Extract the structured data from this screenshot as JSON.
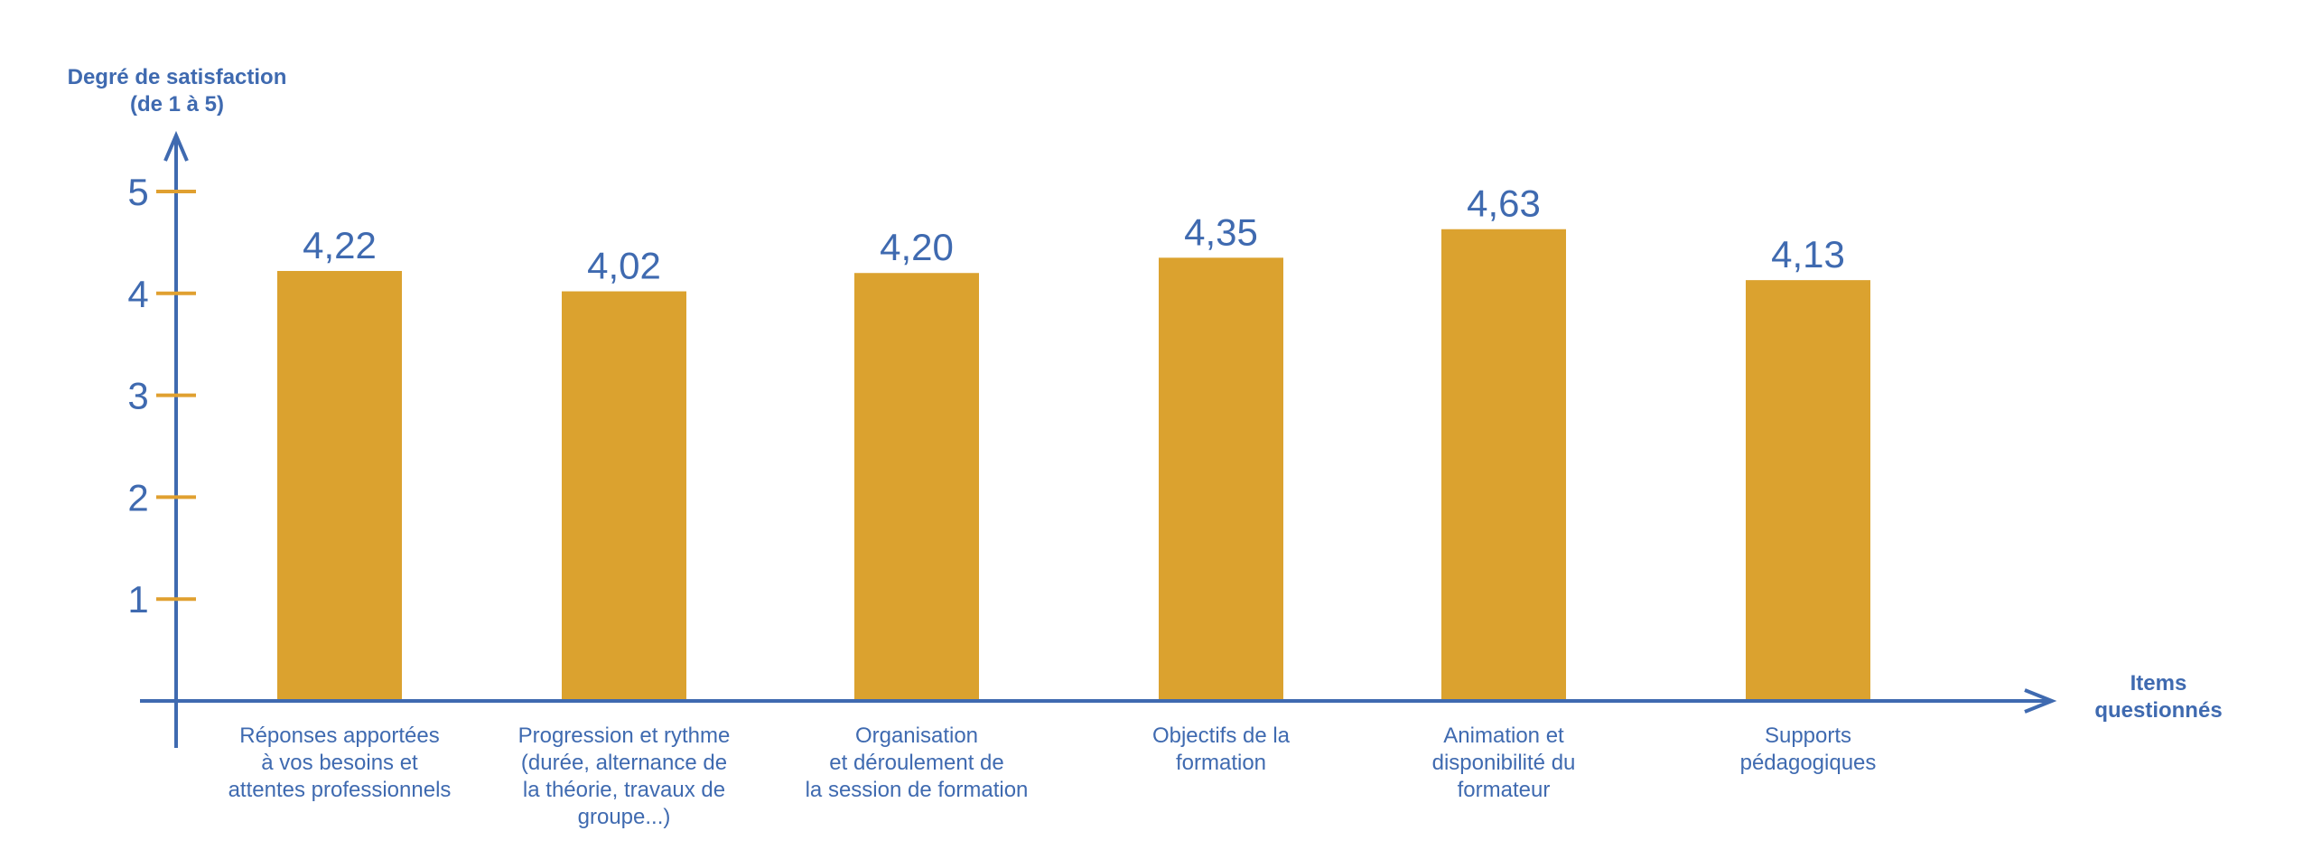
{
  "chart_data": {
    "type": "bar",
    "ylabel_lines": [
      "Degré de satisfaction",
      "(de 1 à 5)"
    ],
    "xlabel_lines": [
      "Items",
      "questionnés"
    ],
    "y_ticks": [
      1,
      2,
      3,
      4,
      5
    ],
    "ylim": [
      0,
      5
    ],
    "bar_color": "#DBA22F",
    "axis_color": "#3F6AB0",
    "tick_color": "#E0A030",
    "categories": [
      {
        "lines": [
          "Réponses apportées",
          "à vos besoins et",
          "attentes professionnels"
        ],
        "value": 4.22,
        "label": "4,22"
      },
      {
        "lines": [
          "Progression et rythme",
          "(durée, alternance de",
          "la théorie, travaux de",
          "groupe...)"
        ],
        "value": 4.02,
        "label": "4,02"
      },
      {
        "lines": [
          "Organisation",
          "et déroulement de",
          "la session de formation"
        ],
        "value": 4.2,
        "label": "4,20"
      },
      {
        "lines": [
          "Objectifs de la",
          "formation"
        ],
        "value": 4.35,
        "label": "4,35"
      },
      {
        "lines": [
          "Animation et",
          "disponibilité du",
          "formateur"
        ],
        "value": 4.63,
        "label": "4,63"
      },
      {
        "lines": [
          "Supports",
          "pédagogiques"
        ],
        "value": 4.13,
        "label": "4,13"
      }
    ]
  }
}
